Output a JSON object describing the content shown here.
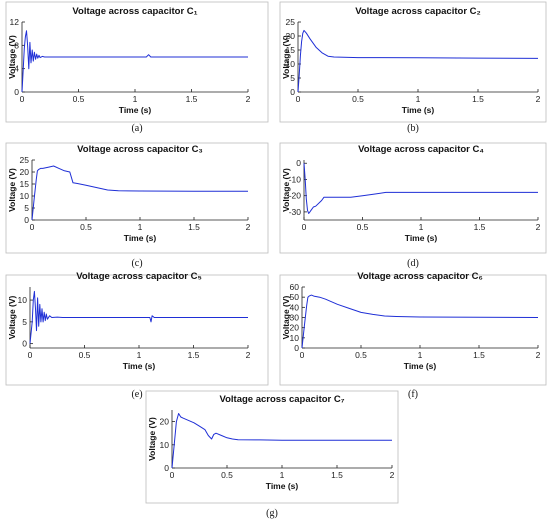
{
  "trace_color": "#1f2fd6",
  "chart_data": [
    {
      "id": "a",
      "type": "line",
      "title": "Voltage across capacitor C₁",
      "xlabel": "Time (s)",
      "ylabel": "Voltage (V)",
      "caption": "(a)",
      "xlim": [
        0,
        2
      ],
      "ylim": [
        0,
        12
      ],
      "xticks": [
        "0",
        "0.5",
        "1",
        "1.5",
        "2"
      ],
      "xtick_values": [
        0,
        0.5,
        1,
        1.5,
        2
      ],
      "yticks": [
        "0",
        "4",
        "8",
        "12"
      ],
      "ytick_values": [
        0,
        4,
        8,
        12
      ],
      "grid": false,
      "legend": "none",
      "series": [
        {
          "x": [
            0,
            0.01,
            0.02,
            0.03,
            0.04,
            0.05,
            0.06,
            0.07,
            0.08,
            0.09,
            0.1,
            0.11,
            0.12,
            0.13,
            0.14,
            0.15,
            0.16,
            0.18,
            0.2,
            0.25,
            0.3,
            1.1,
            1.12,
            1.14,
            2
          ],
          "y": [
            0,
            3.5,
            7.5,
            9.5,
            10.5,
            8.0,
            4.0,
            8.5,
            5.0,
            7.2,
            5.3,
            6.8,
            5.6,
            6.5,
            5.8,
            6.3,
            5.9,
            6.1,
            6.0,
            6.0,
            6.0,
            6.0,
            6.4,
            6.0,
            6.0
          ]
        }
      ]
    },
    {
      "id": "b",
      "type": "line",
      "title": "Voltage across capacitor C₂",
      "xlabel": "Time (s)",
      "ylabel": "Voltage (V)",
      "caption": "(b)",
      "xlim": [
        0,
        2
      ],
      "ylim": [
        0,
        25
      ],
      "xticks": [
        "0",
        "0.5",
        "1",
        "1.5",
        "2"
      ],
      "xtick_values": [
        0,
        0.5,
        1,
        1.5,
        2
      ],
      "yticks": [
        "0",
        "5",
        "10",
        "15",
        "20",
        "25"
      ],
      "ytick_values": [
        0,
        5,
        10,
        15,
        20,
        25
      ],
      "grid": false,
      "legend": "none",
      "series": [
        {
          "x": [
            0,
            0.01,
            0.02,
            0.03,
            0.04,
            0.05,
            0.07,
            0.1,
            0.15,
            0.2,
            0.25,
            0.3,
            0.5,
            1.0,
            1.5,
            2
          ],
          "y": [
            0,
            6,
            13,
            18,
            21,
            22,
            21,
            19,
            16,
            14,
            12.8,
            12.5,
            12.3,
            12.2,
            12.1,
            12.0
          ]
        }
      ]
    },
    {
      "id": "c",
      "type": "line",
      "title": "Voltage across capacitor C₃",
      "xlabel": "Time (s)",
      "ylabel": "Voltage (V)",
      "caption": "(c)",
      "xlim": [
        0,
        2
      ],
      "ylim": [
        0,
        25
      ],
      "xticks": [
        "0",
        "0.5",
        "1",
        "1.5",
        "2"
      ],
      "xtick_values": [
        0,
        0.5,
        1,
        1.5,
        2
      ],
      "yticks": [
        "0",
        "5",
        "10",
        "15",
        "20",
        "25"
      ],
      "ytick_values": [
        0,
        5,
        10,
        15,
        20,
        25
      ],
      "grid": false,
      "legend": "none",
      "series": [
        {
          "x": [
            0,
            0.02,
            0.04,
            0.05,
            0.06,
            0.08,
            0.1,
            0.15,
            0.2,
            0.25,
            0.3,
            0.35,
            0.38,
            0.42,
            0.5,
            0.6,
            0.7,
            0.8,
            1.0,
            1.5,
            2
          ],
          "y": [
            0,
            9,
            17,
            20.5,
            21,
            21.5,
            21.5,
            22,
            22.5,
            21.5,
            20.5,
            20,
            15.5,
            15.2,
            14.5,
            13.5,
            12.5,
            12.2,
            12.1,
            12.0,
            12.0
          ]
        }
      ]
    },
    {
      "id": "d",
      "type": "line",
      "title": "Voltage across capacitor C₄",
      "xlabel": "Time (s)",
      "ylabel": "Voltage (V)",
      "caption": "(d)",
      "xlim": [
        0,
        2
      ],
      "ylim": [
        -35,
        2
      ],
      "xticks": [
        "0",
        "0.5",
        "1",
        "1.5",
        "2"
      ],
      "xtick_values": [
        0,
        0.5,
        1,
        1.5,
        2
      ],
      "yticks": [
        "-30",
        "-20",
        "-10",
        "0"
      ],
      "ytick_values": [
        -30,
        -20,
        -10,
        0
      ],
      "grid": false,
      "legend": "none",
      "series": [
        {
          "x": [
            0,
            0.01,
            0.02,
            0.03,
            0.04,
            0.05,
            0.06,
            0.08,
            0.1,
            0.15,
            0.17,
            0.2,
            0.4,
            0.5,
            0.6,
            0.7,
            1.0,
            1.5,
            2
          ],
          "y": [
            0,
            -10,
            -22,
            -29,
            -31,
            -30,
            -29,
            -27,
            -26.5,
            -23,
            -21,
            -21,
            -21,
            -20,
            -19,
            -18,
            -18,
            -18,
            -18
          ]
        }
      ]
    },
    {
      "id": "e",
      "type": "line",
      "title": "Voltage across capacitor C₅",
      "xlabel": "Time (s)",
      "ylabel": "Voltage (V)",
      "caption": "(e)",
      "xlim": [
        0,
        2
      ],
      "ylim": [
        -1,
        13
      ],
      "xticks": [
        "0",
        "0.5",
        "1",
        "1.5",
        "2"
      ],
      "xtick_values": [
        0,
        0.5,
        1,
        1.5,
        2
      ],
      "yticks": [
        "0",
        "5",
        "10"
      ],
      "ytick_values": [
        0,
        5,
        10
      ],
      "grid": false,
      "legend": "none",
      "series": [
        {
          "x": [
            0,
            0.02,
            0.03,
            0.04,
            0.05,
            0.06,
            0.07,
            0.08,
            0.09,
            0.1,
            0.11,
            0.12,
            0.13,
            0.14,
            0.15,
            0.16,
            0.18,
            0.2,
            0.25,
            0.3,
            1.1,
            1.11,
            1.12,
            1.14,
            2
          ],
          "y": [
            0,
            5,
            10,
            12,
            8,
            3,
            10.5,
            4,
            9,
            5,
            8,
            5,
            7.2,
            5.3,
            6.8,
            5.6,
            6.4,
            6,
            6.1,
            6,
            6,
            5,
            6.4,
            6,
            6
          ]
        }
      ]
    },
    {
      "id": "f",
      "type": "line",
      "title": "Voltage across capacitor C₆",
      "xlabel": "Time (s)",
      "ylabel": "Voltage (V)",
      "caption": "(f)",
      "xlim": [
        0,
        2
      ],
      "ylim": [
        0,
        60
      ],
      "xticks": [
        "0",
        "0.5",
        "1",
        "1.5",
        "2"
      ],
      "xtick_values": [
        0,
        0.5,
        1,
        1.5,
        2
      ],
      "yticks": [
        "0",
        "10",
        "20",
        "30",
        "40",
        "50",
        "60"
      ],
      "ytick_values": [
        0,
        10,
        20,
        30,
        40,
        50,
        60
      ],
      "grid": false,
      "legend": "none",
      "series": [
        {
          "x": [
            0,
            0.02,
            0.04,
            0.05,
            0.06,
            0.08,
            0.1,
            0.15,
            0.2,
            0.3,
            0.4,
            0.5,
            0.6,
            0.7,
            0.8,
            1.0,
            1.5,
            2
          ],
          "y": [
            0,
            22,
            42,
            50,
            51,
            52,
            51,
            50,
            48,
            43,
            39,
            35,
            33,
            31.5,
            31,
            30.5,
            30.2,
            30
          ]
        }
      ]
    },
    {
      "id": "g",
      "type": "line",
      "title": "Voltage across capacitor C₇",
      "xlabel": "Time (s)",
      "ylabel": "Voltage (V)",
      "caption": "(g)",
      "xlim": [
        0,
        2
      ],
      "ylim": [
        0,
        25
      ],
      "xticks": [
        "0",
        "0.5",
        "1",
        "1.5",
        "2"
      ],
      "xtick_values": [
        0,
        0.5,
        1,
        1.5,
        2
      ],
      "yticks": [
        "0",
        "10",
        "20"
      ],
      "ytick_values": [
        0,
        10,
        20
      ],
      "grid": false,
      "legend": "none",
      "series": [
        {
          "x": [
            0,
            0.02,
            0.04,
            0.06,
            0.08,
            0.1,
            0.15,
            0.2,
            0.25,
            0.3,
            0.33,
            0.36,
            0.38,
            0.4,
            0.45,
            0.5,
            0.55,
            0.6,
            0.8,
            1.0,
            1.5,
            2
          ],
          "y": [
            0,
            10,
            20,
            23.5,
            22,
            21.5,
            20.5,
            19.5,
            18,
            16.5,
            14,
            12.5,
            14.5,
            15,
            14,
            13,
            12.5,
            12.2,
            12.1,
            12.0,
            12.0,
            12.0
          ]
        }
      ]
    }
  ]
}
